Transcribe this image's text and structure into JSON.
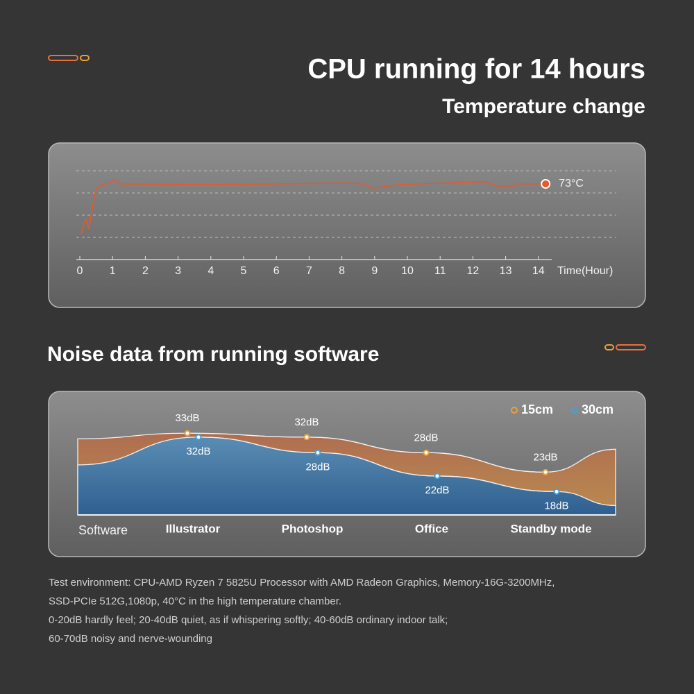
{
  "header": {
    "title": "CPU running for 14 hours",
    "subtitle": "Temperature change"
  },
  "chart_data": [
    {
      "type": "line",
      "x": [
        0.04,
        0.13,
        0.19,
        0.28,
        0.38,
        0.49,
        0.7,
        0.91,
        1.06,
        1.21,
        3.92,
        8.16,
        8.58,
        9.0,
        9.75,
        12.39,
        12.71,
        13.24,
        13.35,
        14.22
      ],
      "values": [
        37.5,
        46,
        48,
        41.5,
        56,
        69.5,
        72.5,
        73.5,
        76,
        73,
        72.5,
        73.5,
        73,
        70,
        72.5,
        74.5,
        71.5,
        71.5,
        73,
        73
      ],
      "value_labels": [
        null,
        null,
        null,
        null,
        null,
        null,
        null,
        null,
        null,
        null,
        null,
        null,
        null,
        null,
        null,
        null,
        null,
        null,
        null,
        "73°C"
      ],
      "color": "#e8582c",
      "xlim": [
        0,
        14.5
      ],
      "xticks": [
        0,
        1,
        2,
        3,
        4,
        5,
        6,
        7,
        8,
        9,
        10,
        11,
        12,
        13,
        14
      ],
      "xlabel": "Time(Hour)",
      "ylim": [
        20,
        90
      ]
    },
    {
      "type": "area",
      "title": "Noise data from running software",
      "xlabel": "Software",
      "categories": [
        "Illustrator",
        "Photoshop",
        "Office",
        "Standby mode"
      ],
      "series": [
        {
          "name": "15cm",
          "color": "#e8a13a",
          "values": [
            33,
            32,
            28,
            23
          ],
          "value_labels": [
            "33dB",
            "32dB",
            "28dB",
            "23dB"
          ]
        },
        {
          "name": "30cm",
          "color": "#3fa3dc",
          "values": [
            32,
            28,
            22,
            18
          ],
          "value_labels": [
            "32dB",
            "28dB",
            "22dB",
            "18dB"
          ]
        }
      ],
      "ylim": [
        12,
        40
      ]
    }
  ],
  "notes": [
    "Test environment: CPU-AMD Ryzen 7 5825U Processor with AMD Radeon Graphics,  Memory-16G-3200MHz,",
    "SSD-PCIe 512G,1080p, 40°C in the high temperature chamber.",
    "0-20dB hardly feel; 20-40dB quiet, as if whispering softly; 40-60dB ordinary indoor talk;",
    "60-70dB noisy and nerve-wounding"
  ]
}
